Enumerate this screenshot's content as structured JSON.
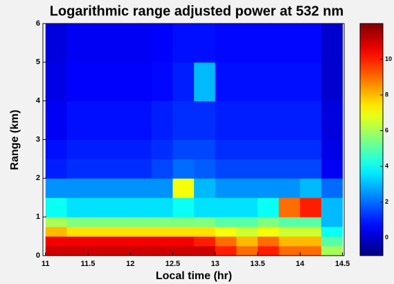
{
  "chart_data": {
    "type": "heatmap",
    "title": "Logarithmic range adjusted power at  532 nm",
    "x_label": "Local time (hr)",
    "y_label": "Range (km)",
    "x_bins": [
      11,
      11.25,
      11.5,
      11.75,
      12,
      12.25,
      12.5,
      12.75,
      13,
      13.25,
      13.5,
      13.75,
      14,
      14.25,
      14.5
    ],
    "y_bins": [
      0,
      0.25,
      0.5,
      0.75,
      1,
      1.5,
      2,
      2.5,
      3,
      4,
      5,
      6
    ],
    "z": [
      [
        11,
        11,
        11,
        11,
        11,
        11,
        11,
        11,
        10,
        9,
        10,
        9,
        9,
        6
      ],
      [
        10.5,
        10.5,
        10.5,
        10.5,
        10.5,
        10.5,
        10.5,
        10,
        9,
        8,
        9,
        8,
        8,
        5
      ],
      [
        8,
        7.5,
        7.5,
        7.5,
        7.5,
        7.5,
        7.5,
        7.5,
        7,
        6.5,
        7,
        6.5,
        6.5,
        4
      ],
      [
        6,
        5.5,
        5.5,
        5.5,
        5.5,
        5.5,
        5.5,
        5.5,
        5,
        5,
        5.5,
        5,
        5,
        3
      ],
      [
        4,
        3.5,
        3.5,
        3.5,
        3.5,
        3.5,
        4,
        3.5,
        3.5,
        3.5,
        4,
        9,
        10,
        3
      ],
      [
        2.5,
        2.5,
        2.5,
        2.5,
        2.5,
        2.5,
        7,
        3,
        2.5,
        2.5,
        2.5,
        2.5,
        3,
        2
      ],
      [
        1,
        1.2,
        1.2,
        1.2,
        1.2,
        1.5,
        2,
        1.8,
        1.5,
        1.5,
        1.5,
        1.5,
        1.5,
        0.5
      ],
      [
        0.8,
        1,
        1,
        1,
        1,
        1.2,
        1.5,
        1.5,
        1.2,
        1.2,
        1.2,
        1.2,
        1.2,
        0.3
      ],
      [
        0.5,
        0.8,
        0.8,
        0.8,
        0.8,
        1,
        1.2,
        1.2,
        1,
        1,
        1,
        1,
        1,
        0.2
      ],
      [
        0.3,
        0.6,
        0.6,
        0.6,
        0.6,
        0.7,
        1,
        3,
        0.8,
        0.8,
        0.8,
        0.8,
        0.8,
        0
      ],
      [
        0.2,
        0.5,
        0.5,
        0.5,
        0.5,
        0.6,
        0.8,
        0.8,
        0.7,
        0.7,
        0.7,
        0.7,
        0.7,
        0
      ]
    ],
    "xlim": [
      10.97,
      14.52
    ],
    "xticks": [
      11,
      11.5,
      12,
      12.5,
      13,
      13.5,
      14,
      14.5
    ],
    "ylim": [
      0,
      6
    ],
    "yticks": [
      0,
      1,
      2,
      3,
      4,
      5,
      6
    ],
    "zlim": [
      -1,
      12
    ],
    "zticks": [
      0,
      2,
      4,
      6,
      8,
      10
    ],
    "colormap": "jet"
  }
}
